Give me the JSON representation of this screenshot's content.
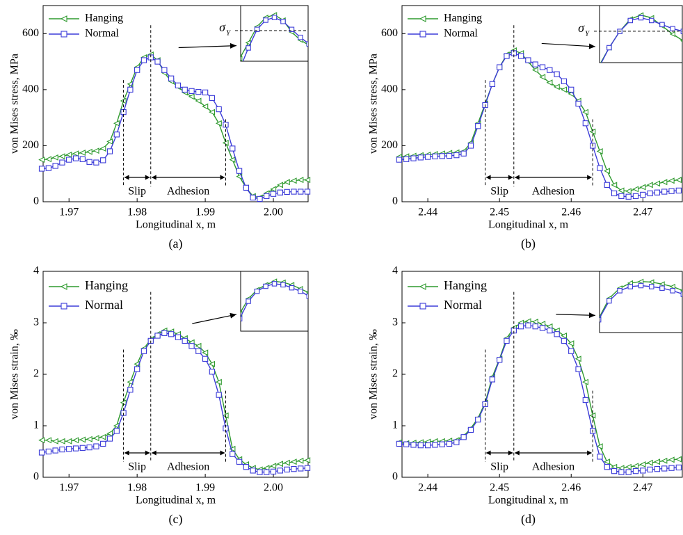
{
  "chart_data": [
    {
      "type": "line",
      "panel_label": "(a)",
      "xlabel": "Longitudinal x, m",
      "ylabel": "von Mises stress, MPa",
      "xlim": [
        1.9662,
        2.0051
      ],
      "ylim": [
        0,
        700
      ],
      "xticks": [
        1.97,
        1.98,
        1.99,
        {
          "value": 2,
          "label": "2.00"
        }
      ],
      "yticks": [
        0,
        200,
        400,
        600
      ],
      "legend": "upper left",
      "x": [
        1.966,
        1.967,
        1.968,
        1.969,
        1.97,
        1.971,
        1.972,
        1.973,
        1.974,
        1.975,
        1.976,
        1.977,
        1.978,
        1.979,
        1.98,
        1.981,
        1.982,
        1.983,
        1.984,
        1.985,
        1.986,
        1.987,
        1.988,
        1.989,
        1.99,
        1.991,
        1.992,
        1.993,
        1.994,
        1.995,
        1.996,
        1.997,
        1.998,
        1.999,
        2.0,
        2.001,
        2.002,
        2.003,
        2.004,
        2.005
      ],
      "series": [
        {
          "name": "Hanging",
          "color": "#2f9a2f",
          "marker": "triangle-left",
          "values": [
            150,
            152,
            158,
            162,
            168,
            172,
            175,
            178,
            182,
            190,
            215,
            280,
            360,
            420,
            480,
            515,
            525,
            505,
            460,
            430,
            410,
            390,
            375,
            360,
            340,
            320,
            280,
            210,
            150,
            90,
            50,
            20,
            15,
            30,
            45,
            60,
            70,
            75,
            78,
            78
          ]
        },
        {
          "name": "Normal",
          "color": "#3b3bd8",
          "marker": "square",
          "values": [
            118,
            120,
            128,
            140,
            150,
            155,
            152,
            142,
            140,
            148,
            180,
            240,
            320,
            400,
            470,
            505,
            515,
            500,
            470,
            440,
            415,
            400,
            395,
            392,
            390,
            370,
            330,
            275,
            190,
            110,
            50,
            15,
            10,
            20,
            28,
            33,
            35,
            36,
            36,
            36
          ]
        }
      ],
      "regions": [
        {
          "label": "Slip",
          "x": [
            1.978,
            1.982
          ]
        },
        {
          "label": "Adhesion",
          "x": [
            1.982,
            1.993
          ]
        }
      ],
      "annotation": {
        "symbol": "σ",
        "subscript": "Y"
      }
    },
    {
      "type": "line",
      "panel_label": "(b)",
      "xlabel": "Longitudinal x, m",
      "ylabel": "von Mises stress, MPa",
      "xlim": [
        2.4364,
        2.4755
      ],
      "ylim": [
        0,
        700
      ],
      "xticks": [
        2.44,
        2.45,
        2.46,
        2.47
      ],
      "yticks": [
        0,
        200,
        400,
        600
      ],
      "legend": "upper left",
      "x": [
        2.436,
        2.437,
        2.438,
        2.439,
        2.44,
        2.441,
        2.442,
        2.443,
        2.444,
        2.445,
        2.446,
        2.447,
        2.448,
        2.449,
        2.45,
        2.451,
        2.452,
        2.453,
        2.454,
        2.455,
        2.456,
        2.457,
        2.458,
        2.459,
        2.46,
        2.461,
        2.462,
        2.463,
        2.464,
        2.465,
        2.466,
        2.467,
        2.468,
        2.469,
        2.47,
        2.471,
        2.472,
        2.473,
        2.474,
        2.475
      ],
      "series": [
        {
          "name": "Hanging",
          "color": "#2f9a2f",
          "marker": "triangle-left",
          "values": [
            160,
            162,
            164,
            166,
            168,
            170,
            172,
            174,
            176,
            180,
            210,
            280,
            350,
            420,
            480,
            525,
            540,
            530,
            500,
            470,
            445,
            425,
            410,
            400,
            385,
            360,
            320,
            250,
            180,
            110,
            60,
            40,
            38,
            45,
            52,
            60,
            65,
            70,
            75,
            78
          ]
        },
        {
          "name": "Normal",
          "color": "#3b3bd8",
          "marker": "square",
          "values": [
            150,
            152,
            155,
            158,
            160,
            162,
            163,
            164,
            166,
            172,
            200,
            270,
            345,
            420,
            480,
            520,
            530,
            520,
            505,
            490,
            480,
            470,
            455,
            430,
            400,
            350,
            280,
            200,
            120,
            60,
            30,
            20,
            18,
            20,
            25,
            30,
            33,
            36,
            38,
            40
          ]
        }
      ],
      "regions": [
        {
          "label": "Slip",
          "x": [
            2.448,
            2.452
          ]
        },
        {
          "label": "Adhesion",
          "x": [
            2.452,
            2.463
          ]
        }
      ],
      "annotation": {
        "symbol": "σ",
        "subscript": "Y"
      }
    },
    {
      "type": "line",
      "panel_label": "(c)",
      "xlabel": "Longitudinal x, m",
      "ylabel": "von Mises strain, ‰",
      "xlim": [
        1.9662,
        2.0051
      ],
      "ylim": [
        0,
        4
      ],
      "xticks": [
        1.97,
        1.98,
        1.99,
        {
          "value": 2,
          "label": "2.00"
        }
      ],
      "yticks": [
        0,
        1,
        2,
        3,
        4
      ],
      "legend": "upper left",
      "x": [
        1.966,
        1.967,
        1.968,
        1.969,
        1.97,
        1.971,
        1.972,
        1.973,
        1.974,
        1.975,
        1.976,
        1.977,
        1.978,
        1.979,
        1.98,
        1.981,
        1.982,
        1.983,
        1.984,
        1.985,
        1.986,
        1.987,
        1.988,
        1.989,
        1.99,
        1.991,
        1.992,
        1.993,
        1.994,
        1.995,
        1.996,
        1.997,
        1.998,
        1.999,
        2.0,
        2.001,
        2.002,
        2.003,
        2.004,
        2.005
      ],
      "series": [
        {
          "name": "Hanging",
          "color": "#2f9a2f",
          "marker": "triangle-left",
          "values": [
            0.72,
            0.72,
            0.7,
            0.7,
            0.7,
            0.72,
            0.73,
            0.74,
            0.76,
            0.78,
            0.85,
            1.0,
            1.45,
            1.85,
            2.2,
            2.5,
            2.68,
            2.78,
            2.85,
            2.83,
            2.78,
            2.7,
            2.62,
            2.55,
            2.42,
            2.2,
            1.85,
            1.2,
            0.55,
            0.35,
            0.25,
            0.18,
            0.15,
            0.18,
            0.22,
            0.26,
            0.28,
            0.3,
            0.32,
            0.33
          ]
        },
        {
          "name": "Normal",
          "color": "#3b3bd8",
          "marker": "square",
          "values": [
            0.48,
            0.5,
            0.52,
            0.54,
            0.55,
            0.56,
            0.57,
            0.58,
            0.6,
            0.65,
            0.75,
            0.9,
            1.25,
            1.7,
            2.1,
            2.45,
            2.65,
            2.75,
            2.8,
            2.78,
            2.72,
            2.65,
            2.55,
            2.45,
            2.3,
            2.05,
            1.6,
            0.95,
            0.45,
            0.3,
            0.2,
            0.13,
            0.1,
            0.1,
            0.11,
            0.13,
            0.15,
            0.16,
            0.17,
            0.18
          ]
        }
      ],
      "regions": [
        {
          "label": "Slip",
          "x": [
            1.978,
            1.982
          ]
        },
        {
          "label": "Adhesion",
          "x": [
            1.982,
            1.993
          ]
        }
      ]
    },
    {
      "type": "line",
      "panel_label": "(d)",
      "xlabel": "Longitudinal x, m",
      "ylabel": "von Mises strain, ‰",
      "xlim": [
        2.4364,
        2.4755
      ],
      "ylim": [
        0,
        4
      ],
      "xticks": [
        2.44,
        2.45,
        2.46,
        2.47
      ],
      "yticks": [
        0,
        1,
        2,
        3,
        4
      ],
      "legend": "upper left",
      "x": [
        2.436,
        2.437,
        2.438,
        2.439,
        2.44,
        2.441,
        2.442,
        2.443,
        2.444,
        2.445,
        2.446,
        2.447,
        2.448,
        2.449,
        2.45,
        2.451,
        2.452,
        2.453,
        2.454,
        2.455,
        2.456,
        2.457,
        2.458,
        2.459,
        2.46,
        2.461,
        2.462,
        2.463,
        2.464,
        2.465,
        2.466,
        2.467,
        2.468,
        2.469,
        2.47,
        2.471,
        2.472,
        2.473,
        2.474,
        2.475
      ],
      "series": [
        {
          "name": "Hanging",
          "color": "#2f9a2f",
          "marker": "triangle-left",
          "values": [
            0.68,
            0.66,
            0.67,
            0.68,
            0.69,
            0.7,
            0.7,
            0.71,
            0.72,
            0.8,
            0.95,
            1.15,
            1.45,
            1.95,
            2.3,
            2.7,
            2.9,
            3.0,
            3.03,
            3.02,
            2.98,
            2.93,
            2.85,
            2.75,
            2.6,
            2.3,
            1.85,
            1.2,
            0.6,
            0.3,
            0.2,
            0.18,
            0.2,
            0.22,
            0.25,
            0.28,
            0.3,
            0.32,
            0.34,
            0.35
          ]
        },
        {
          "name": "Normal",
          "color": "#3b3bd8",
          "marker": "square",
          "values": [
            0.65,
            0.64,
            0.63,
            0.62,
            0.62,
            0.63,
            0.64,
            0.65,
            0.68,
            0.78,
            0.92,
            1.12,
            1.42,
            1.9,
            2.28,
            2.65,
            2.85,
            2.93,
            2.95,
            2.93,
            2.9,
            2.85,
            2.78,
            2.65,
            2.45,
            2.1,
            1.5,
            0.9,
            0.4,
            0.2,
            0.12,
            0.1,
            0.1,
            0.12,
            0.13,
            0.15,
            0.16,
            0.17,
            0.18,
            0.19
          ]
        }
      ],
      "regions": [
        {
          "label": "Slip",
          "x": [
            2.448,
            2.452
          ]
        },
        {
          "label": "Adhesion",
          "x": [
            2.452,
            2.463
          ]
        }
      ]
    }
  ]
}
